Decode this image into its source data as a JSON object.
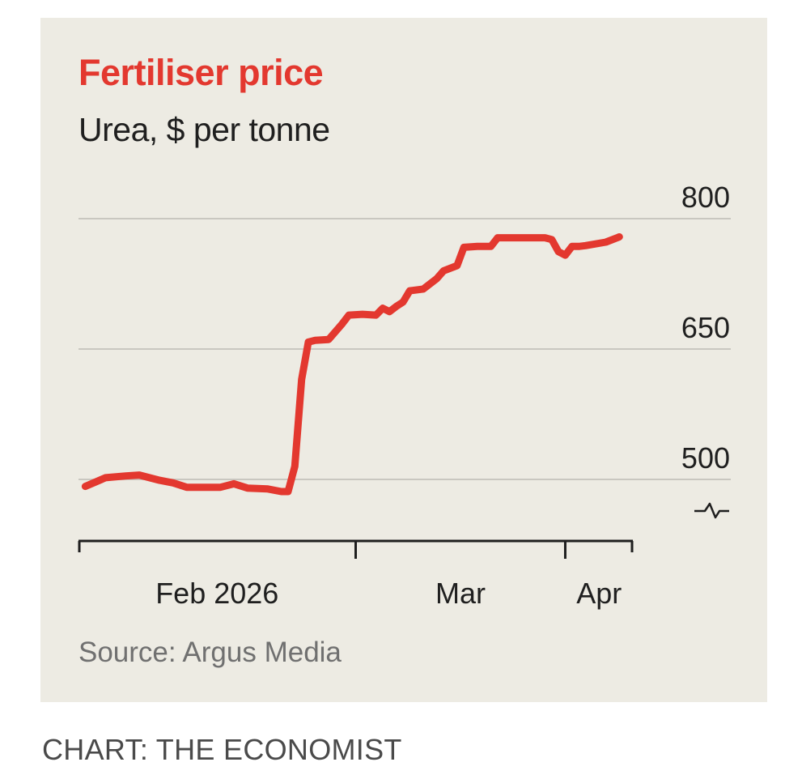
{
  "chart_data": {
    "type": "line",
    "title": "Fertiliser price",
    "subtitle": "Urea, $ per tonne",
    "source": "Source: Argus Media",
    "x_tick_labels": [
      {
        "label": "Feb 2026",
        "x": "2026-02-01"
      },
      {
        "label": "Mar",
        "x": "2026-03-01"
      },
      {
        "label": "Apr",
        "x": "2026-04-01"
      }
    ],
    "x_range": [
      "2026-01-19",
      "2026-04-11"
    ],
    "y_ticks": [
      500,
      650,
      800
    ],
    "ylim": [
      455,
      835
    ],
    "y_axis_broken": true,
    "grid": true,
    "line_color": "#e3382f",
    "series": [
      {
        "x": [
          "2026-01-20",
          "2026-01-23",
          "2026-01-26",
          "2026-01-28",
          "2026-01-31",
          "2026-02-02",
          "2026-02-04",
          "2026-02-06",
          "2026-02-09",
          "2026-02-11",
          "2026-02-13",
          "2026-02-16",
          "2026-02-18",
          "2026-02-19",
          "2026-02-20",
          "2026-02-21",
          "2026-02-22",
          "2026-02-23",
          "2026-02-25",
          "2026-02-27",
          "2026-02-28",
          "2026-03-02",
          "2026-03-04",
          "2026-03-05",
          "2026-03-06",
          "2026-03-07",
          "2026-03-08",
          "2026-03-09",
          "2026-03-11",
          "2026-03-13",
          "2026-03-14",
          "2026-03-16",
          "2026-03-17",
          "2026-03-19",
          "2026-03-21",
          "2026-03-22",
          "2026-03-24",
          "2026-03-26",
          "2026-03-29",
          "2026-03-30",
          "2026-03-31",
          "2026-04-01",
          "2026-04-02",
          "2026-04-03",
          "2026-04-04",
          "2026-04-07",
          "2026-04-09"
        ],
        "values": [
          492,
          502,
          504,
          505,
          499,
          496,
          491,
          491,
          491,
          495,
          490,
          489,
          486,
          486,
          515,
          615,
          658,
          660,
          661,
          679,
          689,
          690,
          689,
          697,
          693,
          699,
          704,
          717,
          719,
          731,
          740,
          746,
          767,
          768,
          768,
          778,
          778,
          778,
          778,
          776,
          762,
          758,
          768,
          768,
          769,
          773,
          779
        ]
      }
    ]
  },
  "footer": {
    "credit": "CHART: THE ECONOMIST"
  }
}
